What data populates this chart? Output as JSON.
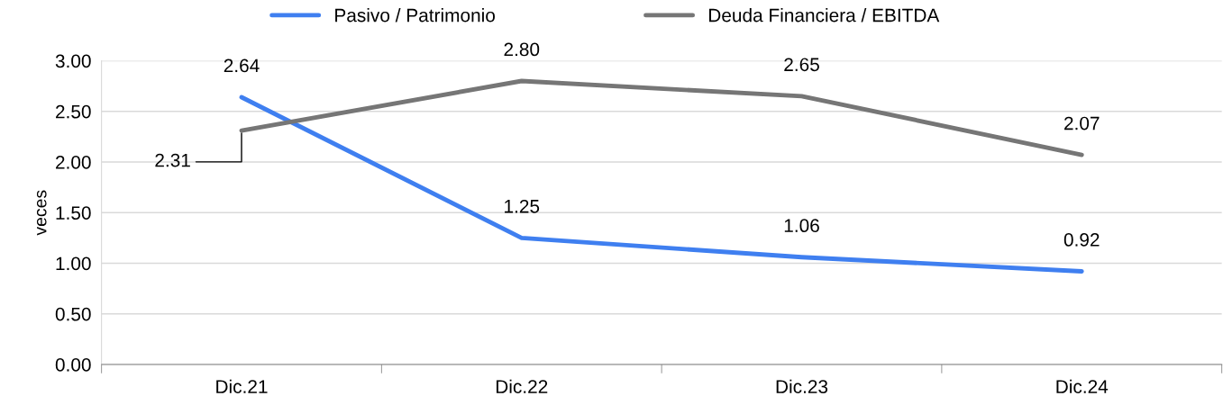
{
  "chart_data": {
    "type": "line",
    "ylabel": "veces",
    "categories": [
      "Dic.21",
      "Dic.22",
      "Dic.23",
      "Dic.24"
    ],
    "series": [
      {
        "name": "Pasivo / Patrimonio",
        "color": "#3f7ff0",
        "values": [
          2.64,
          1.25,
          1.06,
          0.92
        ],
        "value_labels": [
          "2.64",
          "1.25",
          "1.06",
          "0.92"
        ]
      },
      {
        "name": "Deuda Financiera / EBITDA",
        "color": "#767676",
        "values": [
          2.31,
          2.8,
          2.65,
          2.07
        ],
        "value_labels": [
          "2.31",
          "2.80",
          "2.65",
          "2.07"
        ]
      }
    ],
    "ylim": [
      0,
      3.0
    ],
    "yticks": [
      {
        "value": 0,
        "label": "0.00"
      },
      {
        "value": 0.5,
        "label": "0.50"
      },
      {
        "value": 1.0,
        "label": "1.00"
      },
      {
        "value": 1.5,
        "label": "1.50"
      },
      {
        "value": 2.0,
        "label": "2.00"
      },
      {
        "value": 2.5,
        "label": "2.50"
      },
      {
        "value": 3.0,
        "label": "3.00"
      }
    ],
    "grid": "y",
    "legend": "top",
    "marker": "none",
    "line_style": "solid"
  }
}
